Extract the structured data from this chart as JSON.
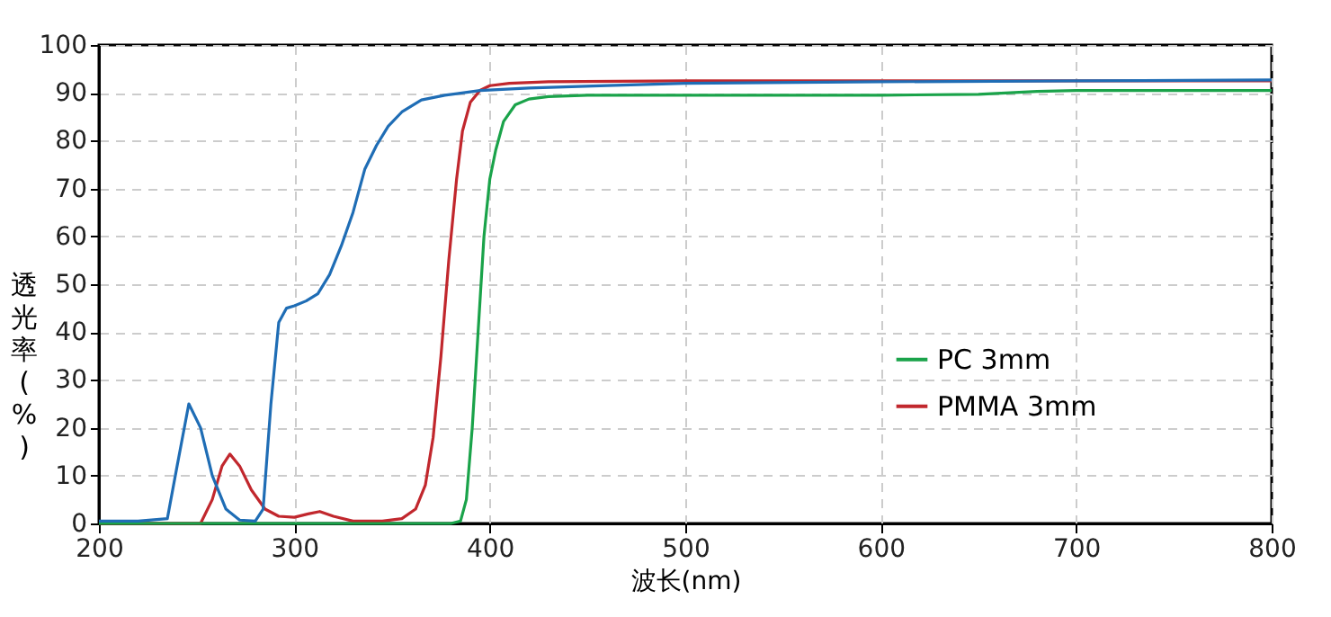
{
  "chart_data": {
    "type": "line",
    "xlabel": "波长(nm)",
    "ylabel": "透光率(%)",
    "xlim": [
      200,
      800
    ],
    "ylim": [
      0,
      100
    ],
    "xticks": [
      200,
      300,
      400,
      500,
      600,
      700,
      800
    ],
    "yticks": [
      0,
      10,
      20,
      30,
      40,
      50,
      60,
      70,
      80,
      90,
      100
    ],
    "grid": true,
    "legend": "right",
    "marker": "none",
    "line_style": "solid",
    "series": [
      {
        "color": "#1f6db5",
        "x": [
          200,
          220,
          235,
          240,
          246,
          252,
          258,
          265,
          272,
          280,
          284,
          288,
          292,
          296,
          300,
          306,
          312,
          318,
          324,
          330,
          336,
          342,
          348,
          355,
          365,
          377,
          395,
          420,
          460,
          500,
          600,
          700,
          800
        ],
        "values": [
          0.5,
          0.5,
          1,
          12,
          25,
          20,
          10,
          3,
          0.7,
          0.5,
          3,
          25,
          42,
          45,
          45.5,
          46.5,
          48,
          52,
          58,
          65,
          74,
          79,
          83,
          86,
          88.5,
          89.5,
          90.5,
          91,
          91.5,
          92,
          92.3,
          92.5,
          92.7
        ]
      },
      {
        "name": "PC 3mm",
        "color": "#1aa34a",
        "x": [
          200,
          380,
          385,
          388,
          391,
          394,
          397,
          400,
          403,
          407,
          413,
          420,
          430,
          450,
          500,
          600,
          650,
          680,
          700,
          800
        ],
        "values": [
          0,
          0,
          0.5,
          5,
          20,
          40,
          60,
          72,
          78,
          84,
          87.5,
          88.7,
          89.2,
          89.5,
          89.5,
          89.5,
          89.7,
          90.3,
          90.5,
          90.5
        ]
      },
      {
        "name": "PMMA 3mm",
        "color": "#c1272d",
        "x": [
          200,
          252,
          258,
          263,
          267,
          272,
          278,
          285,
          292,
          300,
          307,
          313,
          320,
          330,
          345,
          355,
          362,
          367,
          371,
          375,
          379,
          383,
          386,
          390,
          395,
          400,
          410,
          430,
          500,
          600,
          800
        ],
        "values": [
          0,
          0,
          5,
          12,
          14.5,
          12,
          7,
          3,
          1.5,
          1.3,
          2,
          2.5,
          1.5,
          0.5,
          0.5,
          1,
          3,
          8,
          18,
          35,
          55,
          72,
          82,
          88,
          90.5,
          91.5,
          92,
          92.3,
          92.5,
          92.5,
          92.5
        ]
      }
    ]
  }
}
